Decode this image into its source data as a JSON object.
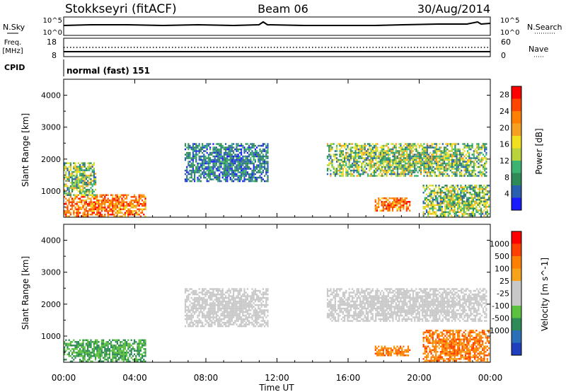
{
  "header": {
    "station": "Stokkseyri (fitACF)",
    "beam": "Beam 06",
    "date": "30/Aug/2014"
  },
  "status_panels": {
    "nsky_label": "N.Sky",
    "nsky_ticks": [
      "10^5",
      "10^0"
    ],
    "nsearch_label": "N.Search",
    "nsearch_ticks": [
      "10^5",
      "10^0"
    ],
    "freq_label_line1": "Freq.",
    "freq_label_line2": "[MHz]",
    "freq_ticks": [
      "18",
      "8"
    ],
    "nave_label": "Nave",
    "nave_ticks": [
      "60",
      "0"
    ],
    "cpid_label": "CPID",
    "cpid_value": "normal (fast) 151"
  },
  "colors": {
    "power": [
      "#1a1aff",
      "#2a5fb0",
      "#2e8b57",
      "#3cb371",
      "#b8d43a",
      "#f0e020",
      "#f5a020",
      "#ff7f00",
      "#ff4500",
      "#ff0000"
    ],
    "velocity": [
      "#1f3fbf",
      "#2b6fb8",
      "#2e8b57",
      "#5cc040",
      "#c8c8c8",
      "#c8c8c8",
      "#f7a21b",
      "#ff7f00",
      "#ff4000",
      "#ff0000"
    ]
  },
  "chart_data": [
    {
      "type": "heatmap",
      "title": "",
      "xlabel": "Time UT",
      "ylabel": "Slant Range [km]",
      "xlim": [
        "00:00",
        "00:00"
      ],
      "x_ticks": [
        "00:00",
        "04:00",
        "08:00",
        "12:00",
        "16:00",
        "20:00",
        "00:00"
      ],
      "ylim": [
        180,
        4500
      ],
      "y_ticks": [
        1000,
        2000,
        3000,
        4000
      ],
      "colorbar": {
        "label": "Power [dB]",
        "ticks": [
          4,
          8,
          12,
          16,
          20,
          24,
          28
        ],
        "range": [
          0,
          30
        ]
      },
      "echo_regions": [
        {
          "start_hour": 0.0,
          "end_hour": 4.6,
          "range_from_km": 200,
          "range_to_km": 900,
          "level": "high"
        },
        {
          "start_hour": 0.0,
          "end_hour": 1.8,
          "range_from_km": 900,
          "range_to_km": 1900,
          "level": "medium"
        },
        {
          "start_hour": 6.8,
          "end_hour": 11.5,
          "range_from_km": 1300,
          "range_to_km": 2500,
          "level": "low"
        },
        {
          "start_hour": 14.8,
          "end_hour": 23.8,
          "range_from_km": 1500,
          "range_to_km": 2500,
          "level": "medium"
        },
        {
          "start_hour": 17.5,
          "end_hour": 19.5,
          "range_from_km": 400,
          "range_to_km": 800,
          "level": "high"
        },
        {
          "start_hour": 20.2,
          "end_hour": 23.9,
          "range_from_km": 200,
          "range_to_km": 1200,
          "level": "medium"
        }
      ]
    },
    {
      "type": "heatmap",
      "title": "",
      "xlabel": "Time UT",
      "ylabel": "Slant Range [km]",
      "xlim": [
        "00:00",
        "00:00"
      ],
      "x_ticks": [
        "00:00",
        "04:00",
        "08:00",
        "12:00",
        "16:00",
        "20:00",
        "00:00"
      ],
      "ylim": [
        180,
        4500
      ],
      "y_ticks": [
        1000,
        2000,
        3000,
        4000
      ],
      "colorbar": {
        "label": "Velocity [m s^-1]",
        "ticks": [
          "1000",
          "500",
          "100",
          "25",
          "-25",
          "-100",
          "-500",
          "-1000"
        ]
      },
      "echo_regions": [
        {
          "start_hour": 0.0,
          "end_hour": 4.6,
          "range_from_km": 200,
          "range_to_km": 900,
          "level": "toward_small"
        },
        {
          "start_hour": 6.8,
          "end_hour": 11.5,
          "range_from_km": 1300,
          "range_to_km": 2500,
          "level": "near_zero"
        },
        {
          "start_hour": 14.8,
          "end_hour": 23.8,
          "range_from_km": 1500,
          "range_to_km": 2500,
          "level": "near_zero"
        },
        {
          "start_hour": 17.5,
          "end_hour": 19.5,
          "range_from_km": 400,
          "range_to_km": 700,
          "level": "away_moderate"
        },
        {
          "start_hour": 20.2,
          "end_hour": 23.9,
          "range_from_km": 200,
          "range_to_km": 1200,
          "level": "away_moderate"
        }
      ]
    }
  ]
}
